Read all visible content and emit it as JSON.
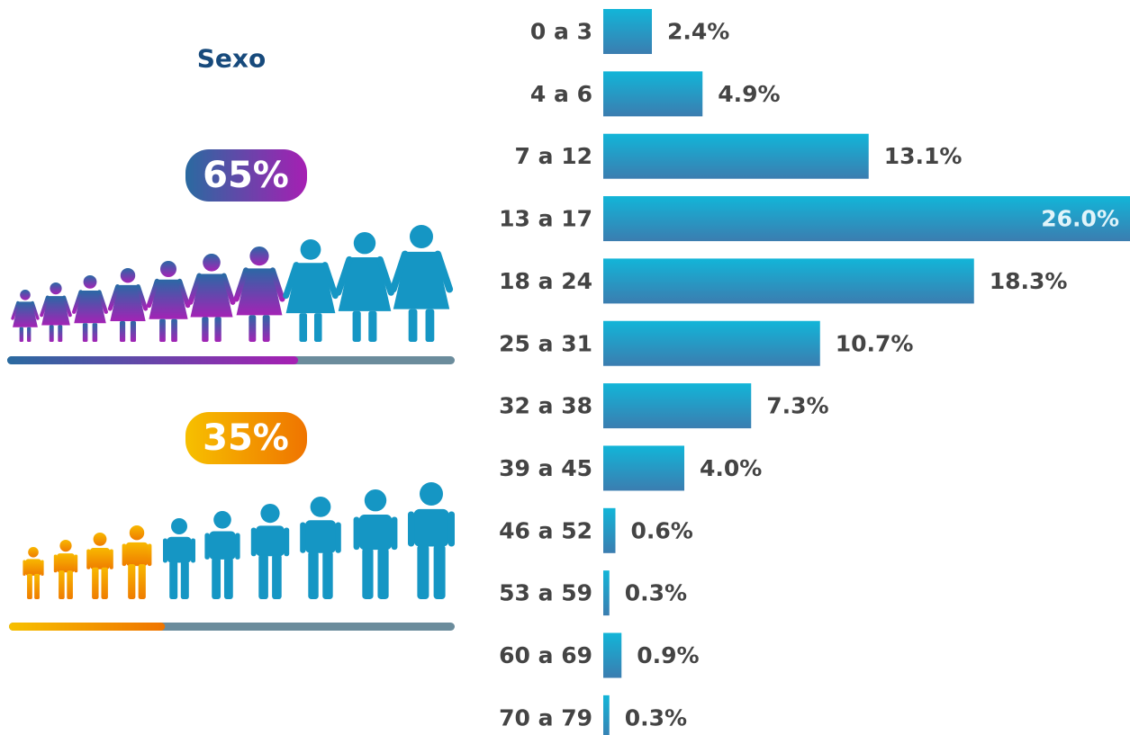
{
  "sex": {
    "title": "Sexo",
    "groups": [
      {
        "value": 65,
        "label": "65%"
      },
      {
        "value": 35,
        "label": "35%"
      }
    ]
  },
  "chart_data": {
    "type": "hbar",
    "categories": [
      "0 a 3",
      "4 a 6",
      "7 a 12",
      "13 a 17",
      "18 a 24",
      "25 a 31",
      "32 a 38",
      "39 a 45",
      "46 a 52",
      "53 a 59",
      "60 a 69",
      "70 a 79"
    ],
    "values": [
      2.4,
      4.9,
      13.1,
      26.0,
      18.3,
      10.7,
      7.3,
      4.0,
      0.6,
      0.3,
      0.9,
      0.3
    ],
    "value_labels": [
      "2.4%",
      "4.9%",
      "13.1%",
      "26.0%",
      "18.3%",
      "10.7%",
      "7.3%",
      "4.0%",
      "0.6%",
      "0.3%",
      "0.9%",
      "0.3%"
    ]
  }
}
